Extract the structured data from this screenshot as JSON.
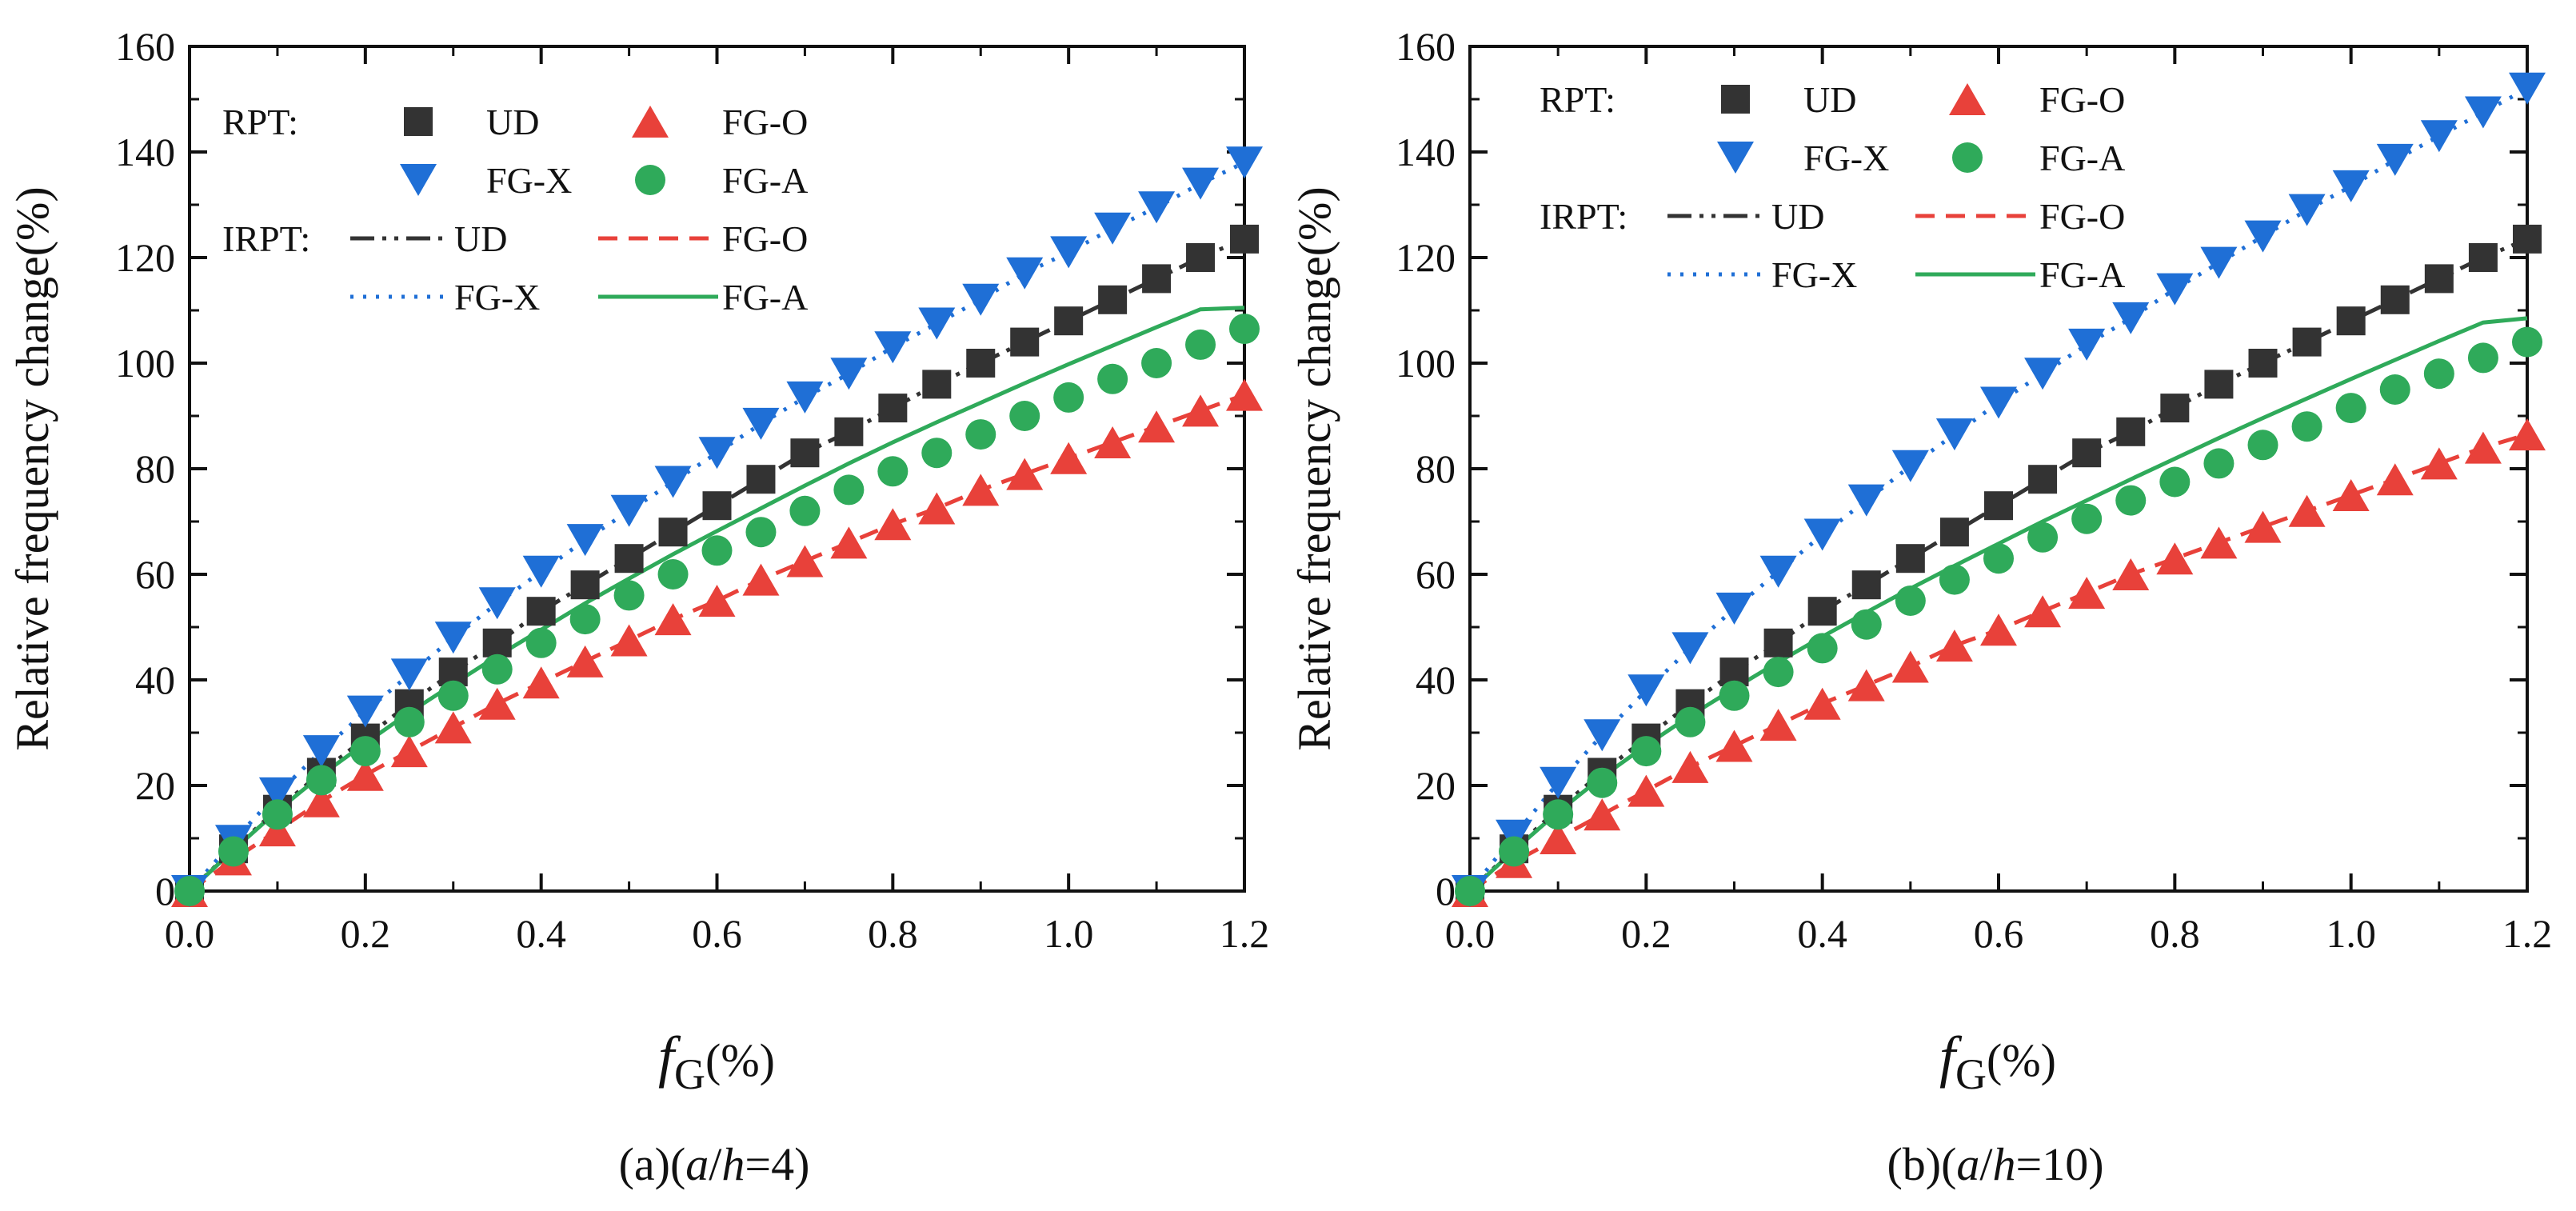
{
  "chart_data": [
    {
      "type": "line",
      "panel": "a",
      "caption": {
        "prefix": "(a)(",
        "a": "a",
        "slash": "/",
        "h": "h",
        "suffix": "=4)"
      },
      "xlabel": {
        "f": "f",
        "sub": "G",
        "unit": "(%)"
      },
      "ylabel": "Relative frequency change(%)",
      "xlim": [
        0,
        1.2
      ],
      "ylim": [
        0,
        160
      ],
      "xticks": [
        "0.0",
        "0.2",
        "0.4",
        "0.6",
        "0.8",
        "1.0",
        "1.2"
      ],
      "yticks": [
        "0",
        "20",
        "40",
        "60",
        "80",
        "100",
        "120",
        "140",
        "160"
      ],
      "legend": {
        "rpt_label": "RPT:",
        "irpt_label": "IRPT:"
      },
      "x": [
        0,
        0.05,
        0.1,
        0.15,
        0.2,
        0.25,
        0.3,
        0.35,
        0.4,
        0.45,
        0.5,
        0.55,
        0.6,
        0.65,
        0.7,
        0.75,
        0.8,
        0.85,
        0.9,
        0.95,
        1.0,
        1.05,
        1.1,
        1.15,
        1.2
      ],
      "series": [
        {
          "name": "UD",
          "key": "ud",
          "color": "#333333",
          "line": "dashdotdot",
          "marker": "square",
          "values": [
            0,
            8,
            15.5,
            22.5,
            29,
            35.5,
            41.5,
            47,
            53,
            58,
            63,
            68,
            73,
            78,
            83,
            87,
            91.5,
            96,
            100,
            104,
            108,
            112,
            116,
            120,
            123.5
          ]
        },
        {
          "name": "FG-O",
          "key": "fgo",
          "color": "#e8413a",
          "line": "dashed",
          "marker": "triangle-up",
          "values": [
            0,
            6,
            11.5,
            17,
            22,
            26.5,
            31,
            35.5,
            39.5,
            43.5,
            47.5,
            51.5,
            55,
            59,
            62.5,
            66,
            69.5,
            72.5,
            76,
            79,
            82,
            85,
            88,
            91,
            94
          ]
        },
        {
          "name": "FG-X",
          "key": "fgx",
          "color": "#1f6fd6",
          "line": "dotted",
          "marker": "triangle-down",
          "values": [
            0,
            9.5,
            18.5,
            26.5,
            34,
            41,
            48,
            54.5,
            60.5,
            66.5,
            72,
            77.5,
            83,
            88.5,
            93.5,
            98,
            103,
            107.5,
            112,
            117,
            121,
            125.5,
            129.5,
            134,
            138
          ]
        },
        {
          "name": "FG-A",
          "key": "fga",
          "color": "#2faa5a",
          "line": "solid",
          "marker": "circle",
          "values": [
            0,
            7.5,
            14.5,
            21,
            26.5,
            32,
            37,
            42,
            47,
            51.5,
            56,
            60,
            64.5,
            68,
            72,
            76,
            79.5,
            83,
            86.5,
            90,
            93.5,
            97,
            100,
            103.5,
            106.5
          ],
          "line_values": [
            0,
            7.8,
            15.2,
            22,
            28,
            33.8,
            39.2,
            44.5,
            49.5,
            54.5,
            59.2,
            63.8,
            68.2,
            72.5,
            76.8,
            81,
            85,
            88.8,
            92.5,
            96.2,
            99.8,
            103.3,
            106.8,
            110.2,
            110.5
          ]
        }
      ]
    },
    {
      "type": "line",
      "panel": "b",
      "caption": {
        "prefix": "(b)(",
        "a": "a",
        "slash": "/",
        "h": "h",
        "suffix": "=10)"
      },
      "xlabel": {
        "f": "f",
        "sub": "G",
        "unit": "(%)"
      },
      "ylabel": "Relative frequency change(%)",
      "xlim": [
        0,
        1.2
      ],
      "ylim": [
        0,
        160
      ],
      "xticks": [
        "0.0",
        "0.2",
        "0.4",
        "0.6",
        "0.8",
        "1.0",
        "1.2"
      ],
      "yticks": [
        "0",
        "20",
        "40",
        "60",
        "80",
        "100",
        "120",
        "140",
        "160"
      ],
      "legend": {
        "rpt_label": "RPT:",
        "irpt_label": "IRPT:"
      },
      "x": [
        0,
        0.05,
        0.1,
        0.15,
        0.2,
        0.25,
        0.3,
        0.35,
        0.4,
        0.45,
        0.5,
        0.55,
        0.6,
        0.65,
        0.7,
        0.75,
        0.8,
        0.85,
        0.9,
        0.95,
        1.0,
        1.05,
        1.1,
        1.15,
        1.2
      ],
      "series": [
        {
          "name": "UD",
          "key": "ud",
          "color": "#333333",
          "line": "dashdotdot",
          "marker": "square",
          "values": [
            0,
            8,
            15.5,
            22.5,
            29,
            35.5,
            41.5,
            47,
            53,
            58,
            63,
            68,
            73,
            78,
            83,
            87,
            91.5,
            96,
            100,
            104,
            108,
            112,
            116,
            120,
            123.5
          ]
        },
        {
          "name": "FG-O",
          "key": "fgo",
          "color": "#e8413a",
          "line": "dashed",
          "marker": "triangle-up",
          "values": [
            0,
            5.5,
            10,
            14.5,
            19,
            23.5,
            27.5,
            31.5,
            35.5,
            39,
            42.5,
            46.5,
            49.5,
            53,
            56.5,
            60,
            63,
            66,
            69,
            72,
            75,
            78,
            81,
            84,
            86.5
          ]
        },
        {
          "name": "FG-X",
          "key": "fgx",
          "color": "#1f6fd6",
          "line": "dotted",
          "marker": "triangle-down",
          "values": [
            0,
            10.5,
            20.5,
            29.5,
            38,
            46,
            53.5,
            60.5,
            67.5,
            74,
            80.5,
            86.5,
            92.5,
            98,
            103.5,
            108.5,
            114,
            119,
            124,
            129,
            133.5,
            138.5,
            143,
            147.5,
            152
          ]
        },
        {
          "name": "FG-A",
          "key": "fga",
          "color": "#2faa5a",
          "line": "solid",
          "marker": "circle",
          "values": [
            0,
            7.5,
            14.5,
            20.5,
            26.5,
            32,
            37,
            41.5,
            46,
            50.5,
            55,
            59,
            63,
            67,
            70.5,
            74,
            77.5,
            81,
            84.5,
            88,
            91.5,
            95,
            98,
            101,
            104
          ],
          "line_values": [
            0,
            7.7,
            15,
            21.6,
            27.6,
            33.2,
            38.4,
            43.4,
            48.2,
            52.8,
            57.3,
            61.6,
            65.8,
            70,
            74,
            78,
            81.9,
            85.8,
            89.6,
            93.3,
            97,
            100.6,
            104.2,
            107.7,
            108.5
          ]
        }
      ]
    }
  ]
}
